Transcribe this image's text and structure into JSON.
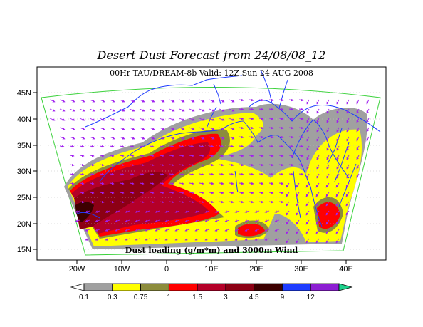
{
  "title": "Desert Dust Forecast from 24/08/08_12",
  "subtitle": "00Hr TAU/DREAM-8b Valid: 12Z Sun 24 AUG 2008",
  "map_label": "Dust loading (g/m*m) and 3000m Wind",
  "lat_ticks": [
    "15N",
    "20N",
    "25N",
    "30N",
    "35N",
    "40N",
    "45N"
  ],
  "lon_ticks": [
    "20W",
    "10W",
    "0",
    "10E",
    "20E",
    "30E",
    "40E"
  ],
  "colorbar": {
    "labels": [
      "0.1",
      "0.3",
      "0.75",
      "1",
      "1.5",
      "3",
      "4.5",
      "9",
      "12"
    ],
    "colors": [
      "#ffffff",
      "#a0a0a0",
      "#ffff00",
      "#8c8c3c",
      "#ff0000",
      "#b40028",
      "#8c0014",
      "#3c0000",
      "#1e3cff",
      "#8c1ed2",
      "#1ed28c"
    ]
  }
}
